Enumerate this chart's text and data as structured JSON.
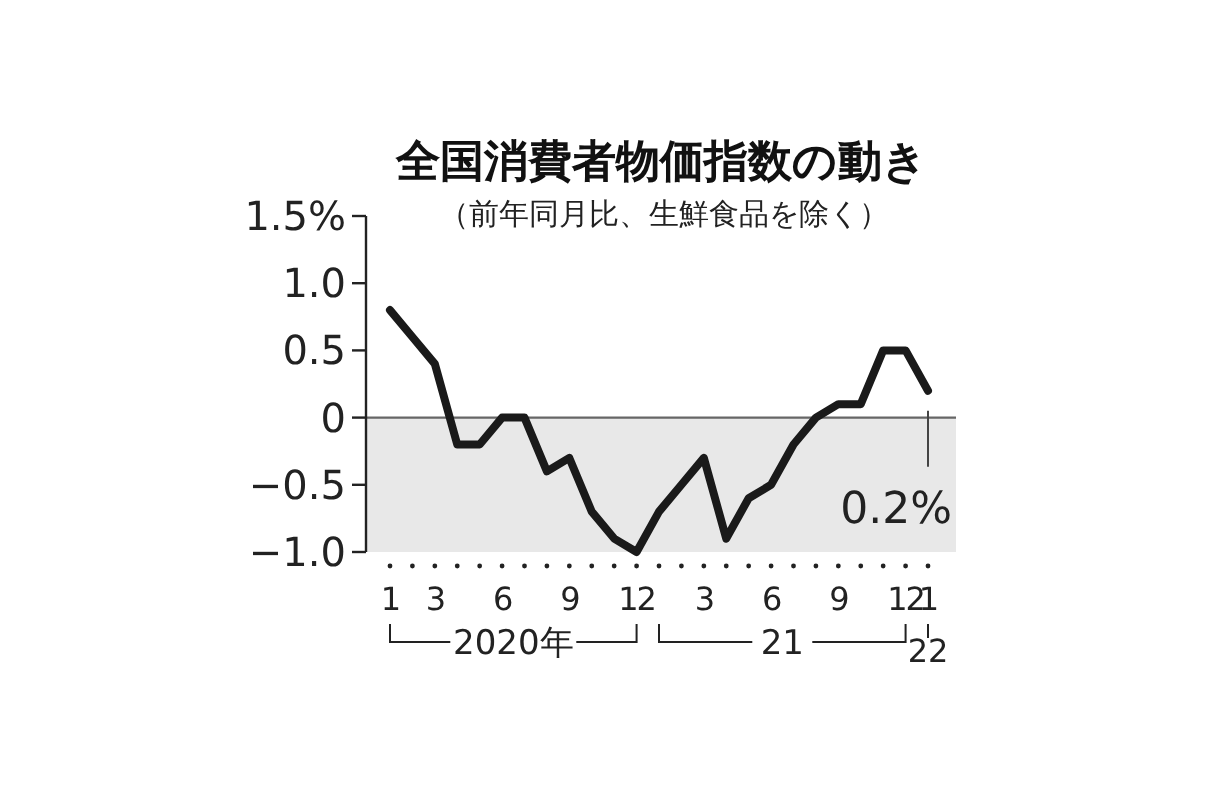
{
  "chart_data": {
    "type": "line",
    "title": "全国消費者物価指数の動き",
    "subtitle": "（前年同月比、生鮮食品を除く）",
    "categories": [
      "1",
      null,
      "3",
      null,
      null,
      "6",
      null,
      null,
      "9",
      null,
      null,
      "12",
      null,
      null,
      "3",
      null,
      null,
      "6",
      null,
      null,
      "9",
      null,
      null,
      "12",
      "1"
    ],
    "series": [
      {
        "color": "#1a1a1a",
        "values": [
          0.8,
          0.6,
          0.4,
          -0.2,
          -0.2,
          0,
          0,
          -0.4,
          -0.3,
          -0.7,
          -0.9,
          -1.0,
          -0.7,
          -0.5,
          -0.3,
          -0.9,
          -0.6,
          -0.5,
          -0.2,
          0.0,
          0.1,
          0.1,
          0.5,
          0.5,
          0.2
        ]
      }
    ],
    "ylim": [
      -1.0,
      1.5
    ],
    "yticks": [
      {
        "value": 1.5,
        "label": "1.5%"
      },
      {
        "value": 1.0,
        "label": "1.0"
      },
      {
        "value": 0.5,
        "label": "0.5"
      },
      0,
      {
        "value": -0.5,
        "label": "−0.5"
      },
      {
        "value": -1.0,
        "label": "−1.0"
      }
    ],
    "bands": [
      {
        "axis": "y",
        "from": -1.0,
        "to": 0,
        "color": "#e8e8e8"
      }
    ],
    "ref_lines": [
      {
        "axis": "y",
        "value": 0,
        "color": "#666666"
      }
    ],
    "annotations": [
      "2020年",
      "21",
      "22",
      "0.2%"
    ],
    "grid": false,
    "marker": "none",
    "line_style": "solid"
  }
}
